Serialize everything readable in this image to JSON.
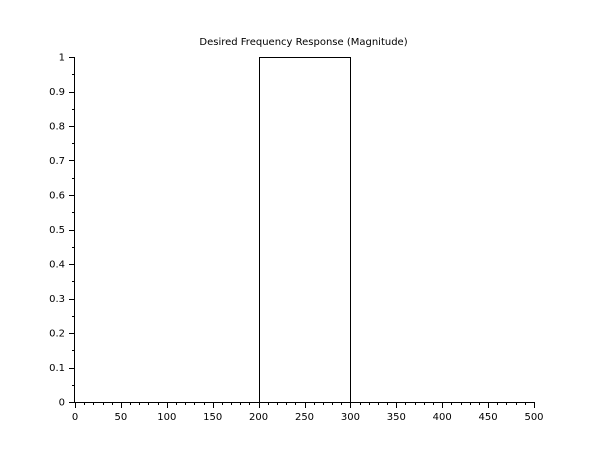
{
  "chart_data": {
    "type": "line",
    "title": "Desired Frequency Response (Magnitude)",
    "xlabel": "",
    "ylabel": "",
    "xlim": [
      0,
      500
    ],
    "ylim": [
      0,
      1
    ],
    "x_major_ticks": [
      0,
      50,
      100,
      150,
      200,
      250,
      300,
      350,
      400,
      450,
      500
    ],
    "x_tick_labels": [
      "0",
      "50",
      "100",
      "150",
      "200",
      "250",
      "300",
      "350",
      "400",
      "450",
      "500"
    ],
    "y_major_ticks": [
      0,
      0.1,
      0.2,
      0.3,
      0.4,
      0.5,
      0.6,
      0.7,
      0.8,
      0.9,
      1
    ],
    "y_tick_labels": [
      "0",
      "0.1",
      "0.2",
      "0.3",
      "0.4",
      "0.5",
      "0.6",
      "0.7",
      "0.8",
      "0.9",
      "1"
    ],
    "grid": false,
    "series": [
      {
        "color": "#000000",
        "x": [
          0,
          200,
          200,
          300,
          300,
          500
        ],
        "y": [
          0,
          0,
          1,
          1,
          0,
          0
        ]
      }
    ]
  }
}
